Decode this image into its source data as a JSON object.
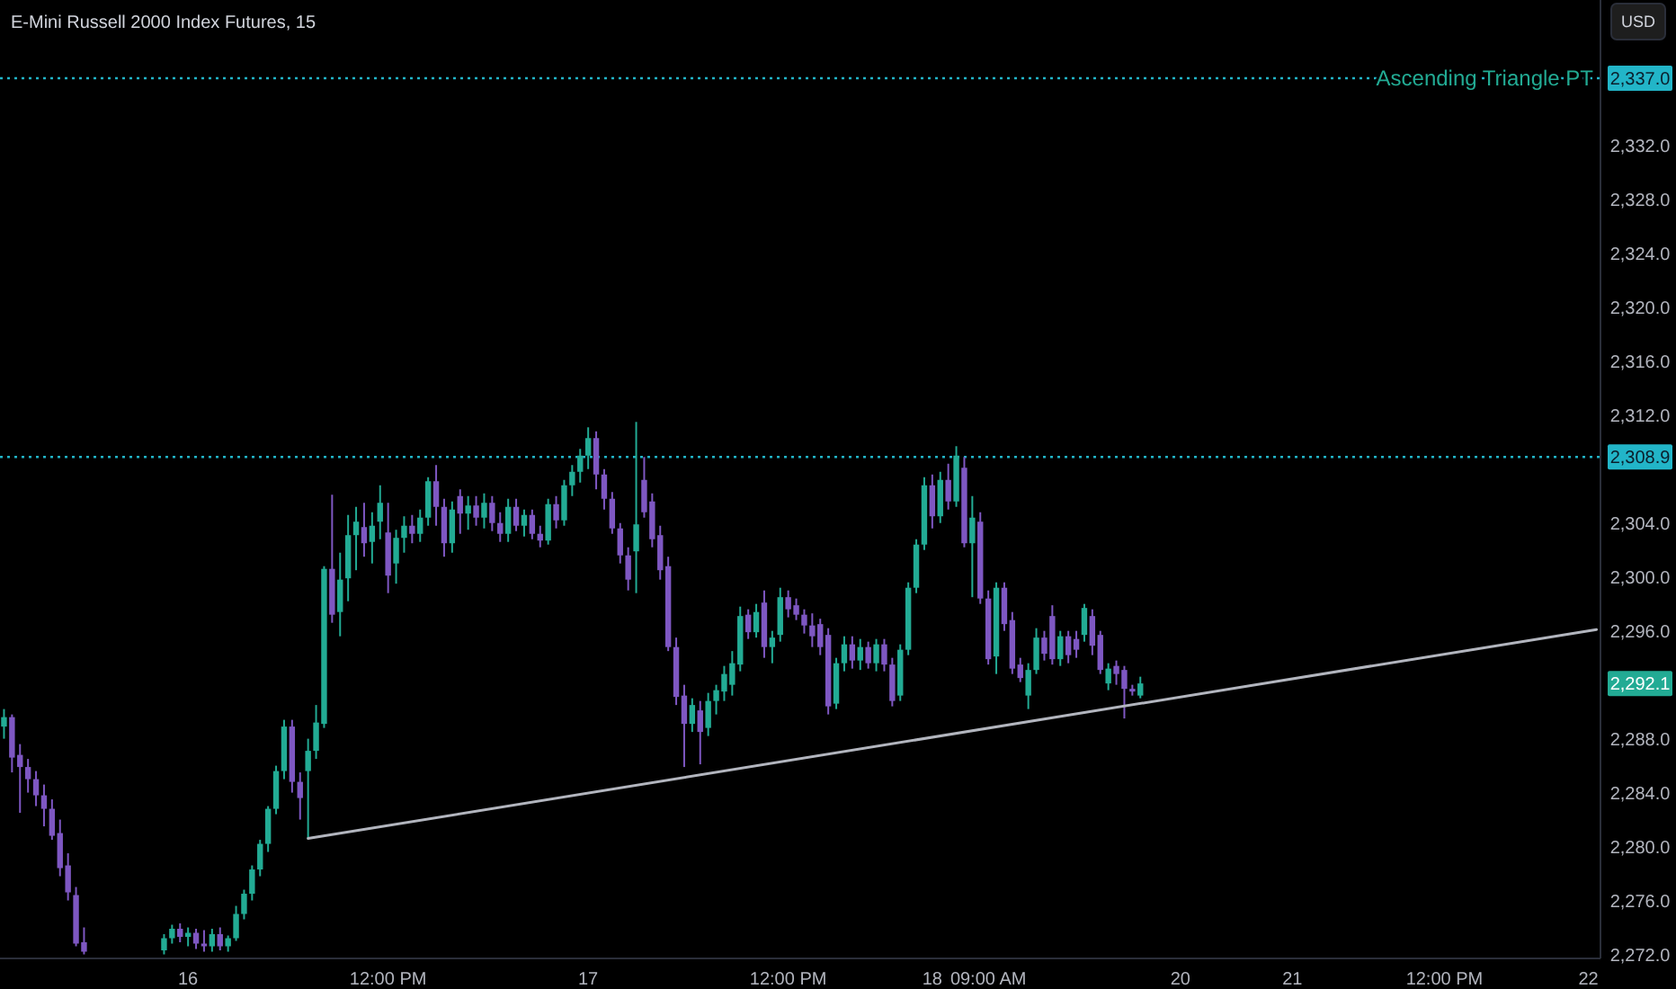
{
  "chart_data": {
    "type": "candlestick",
    "title": "E-Mini Russell 2000 Index Futures, 15",
    "categories": [
      null,
      null,
      null,
      null,
      null,
      null,
      null,
      null,
      null,
      null,
      null,
      null,
      null,
      null,
      null,
      null,
      null,
      null,
      null,
      null,
      null,
      null,
      null,
      "16",
      null,
      null,
      null,
      null,
      null,
      null,
      null,
      null,
      null,
      null,
      null,
      null,
      null,
      null,
      null,
      null,
      null,
      null,
      null,
      null,
      null,
      null,
      null,
      null,
      "12:00 PM",
      null,
      null,
      null,
      null,
      null,
      null,
      null,
      null,
      null,
      null,
      null,
      null,
      null,
      null,
      null,
      null,
      null,
      null,
      null,
      null,
      null,
      null,
      null,
      null,
      "17",
      null,
      null,
      null,
      null,
      null,
      null,
      null,
      null,
      null,
      null,
      null,
      null,
      null,
      null,
      null,
      null,
      null,
      null,
      null,
      null,
      null,
      null,
      null,
      null,
      "12:00 PM",
      null,
      null,
      null,
      null,
      null,
      null,
      null,
      null,
      null,
      null,
      null,
      null,
      null,
      null,
      null,
      null,
      null,
      "18",
      null,
      null,
      null,
      null,
      null,
      null,
      "09:00 AM",
      null,
      null,
      null,
      null,
      null,
      null,
      null,
      null,
      null,
      null,
      null,
      null,
      null,
      null,
      null,
      null,
      null,
      null,
      null,
      null,
      null,
      null,
      null,
      "20",
      null,
      null,
      null,
      null,
      null,
      null,
      null,
      null,
      null,
      null,
      null,
      null,
      null,
      "21",
      null,
      null,
      null,
      null,
      null,
      null,
      null,
      null,
      null,
      null,
      null,
      null,
      null,
      null,
      null,
      null,
      null,
      null,
      "12:00 PM",
      null,
      null,
      null,
      null,
      null,
      null,
      null,
      null,
      null,
      null,
      null,
      null,
      null,
      null,
      null,
      null,
      null,
      "22",
      null
    ],
    "ylim": [
      2271.7,
      2342.8
    ],
    "yticks": [
      {
        "value": 2272,
        "label": "2,272.0"
      },
      {
        "value": 2276,
        "label": "2,276.0"
      },
      {
        "value": 2280,
        "label": "2,280.0"
      },
      {
        "value": 2284,
        "label": "2,284.0"
      },
      {
        "value": 2288,
        "label": "2,288.0"
      },
      {
        "value": 2296,
        "label": "2,296.0"
      },
      {
        "value": 2300,
        "label": "2,300.0"
      },
      {
        "value": 2304,
        "label": "2,304.0"
      },
      {
        "value": 2312,
        "label": "2,312.0"
      },
      {
        "value": 2316,
        "label": "2,316.0"
      },
      {
        "value": 2320,
        "label": "2,320.0"
      },
      {
        "value": 2324,
        "label": "2,324.0"
      },
      {
        "value": 2328,
        "label": "2,328.0"
      },
      {
        "value": 2332,
        "label": "2,332.0"
      }
    ],
    "colors": [
      "#22ab94",
      "#7e57c2",
      "#7e57c2",
      "#7e57c2",
      "#7e57c2",
      "#7e57c2",
      "#7e57c2",
      "#7e57c2",
      "#7e57c2",
      "#7e57c2",
      "#7e57c2",
      null,
      null,
      null,
      null,
      null,
      null,
      null,
      null,
      null,
      "#22ab94",
      "#22ab94",
      "#7e57c2",
      "#22ab94",
      "#7e57c2",
      "#7e57c2",
      "#22ab94",
      "#7e57c2",
      "#22ab94",
      "#22ab94",
      "#22ab94",
      "#22ab94",
      "#22ab94",
      "#22ab94",
      "#22ab94",
      "#22ab94",
      "#7e57c2",
      "#7e57c2",
      "#22ab94",
      "#22ab94",
      "#22ab94",
      "#7e57c2",
      "#22ab94",
      "#22ab94",
      "#22ab94",
      "#7e57c2",
      "#22ab94",
      "#22ab94",
      "#7e57c2",
      "#22ab94",
      "#22ab94",
      "#7e57c2",
      "#22ab94",
      "#22ab94",
      "#7e57c2",
      "#7e57c2",
      "#22ab94",
      "#7e57c2",
      "#22ab94",
      "#7e57c2",
      "#22ab94",
      "#7e57c2",
      "#7e57c2",
      "#22ab94",
      "#7e57c2",
      "#22ab94",
      "#7e57c2",
      "#7e57c2",
      "#22ab94",
      "#7e57c2",
      "#22ab94",
      "#22ab94",
      "#22ab94",
      "#22ab94",
      "#7e57c2",
      "#7e57c2",
      "#7e57c2",
      "#7e57c2",
      "#7e57c2",
      "#22ab94",
      "#7e57c2",
      "#7e57c2",
      "#7e57c2",
      "#7e57c2",
      "#7e57c2",
      "#7e57c2",
      "#22ab94",
      "#7e57c2",
      "#22ab94",
      "#22ab94",
      "#22ab94",
      "#22ab94",
      "#22ab94",
      "#7e57c2",
      "#22ab94",
      "#7e57c2",
      "#22ab94",
      "#22ab94",
      "#7e57c2",
      "#7e57c2",
      "#7e57c2",
      "#7e57c2",
      "#7e57c2",
      "#7e57c2",
      "#22ab94",
      "#22ab94",
      "#7e57c2",
      "#22ab94",
      "#7e57c2",
      "#22ab94",
      "#7e57c2",
      "#7e57c2",
      "#22ab94",
      "#22ab94",
      "#22ab94",
      "#22ab94",
      "#7e57c2",
      "#22ab94",
      "#7e57c2",
      "#22ab94",
      "#7e57c2",
      "#22ab94",
      "#7e57c2",
      "#7e57c2",
      "#22ab94",
      "#7e57c2",
      "#7e57c2",
      "#7e57c2",
      "#22ab94",
      "#22ab94",
      "#7e57c2",
      "#7e57c2",
      "#22ab94",
      "#7e57c2",
      "#7e57c2",
      "#22ab94",
      "#7e57c2",
      "#7e57c2",
      "#22ab94",
      "#7e57c2",
      "#7e57c2",
      "#7e57c2",
      "#22ab94",
      null,
      null,
      null,
      null,
      null,
      null,
      null,
      null,
      null,
      null,
      null,
      null,
      null,
      null,
      null,
      null,
      null,
      null,
      null,
      null,
      null,
      null,
      null,
      null,
      null,
      null,
      null,
      null,
      null,
      null,
      null,
      null,
      null,
      null,
      null,
      null,
      null,
      null,
      null,
      null,
      null,
      null,
      null,
      null,
      null,
      null,
      null,
      null,
      null,
      null,
      null,
      null,
      null,
      null,
      null,
      null,
      null
    ],
    "ohlc": [
      [
        2288.9,
        2290.2,
        2288.0,
        2289.6
      ],
      [
        2289.6,
        2289.8,
        2285.5,
        2286.6
      ],
      [
        2286.8,
        2287.6,
        2282.5,
        2285.9
      ],
      [
        2285.9,
        2286.5,
        2284.0,
        2285.0
      ],
      [
        2285.0,
        2285.6,
        2283.0,
        2283.8
      ],
      [
        2283.8,
        2284.6,
        2281.5,
        2282.8
      ],
      [
        2282.8,
        2283.5,
        2280.5,
        2280.8
      ],
      [
        2281.0,
        2282.0,
        2277.8,
        2278.4
      ],
      [
        2278.6,
        2279.5,
        2276.0,
        2276.6
      ],
      [
        2276.4,
        2277.0,
        2272.6,
        2272.8
      ],
      [
        2272.9,
        2274.0,
        2272.0,
        2272.2
      ],
      null,
      null,
      null,
      null,
      null,
      null,
      null,
      null,
      null,
      [
        2272.3,
        2273.5,
        2272.0,
        2273.2
      ],
      [
        2273.2,
        2274.2,
        2272.8,
        2273.9
      ],
      [
        2273.9,
        2274.3,
        2272.9,
        2273.3
      ],
      [
        2273.3,
        2274.0,
        2272.6,
        2273.6
      ],
      [
        2273.6,
        2273.9,
        2272.4,
        2272.8
      ],
      [
        2272.8,
        2273.8,
        2272.2,
        2272.6
      ],
      [
        2272.6,
        2273.9,
        2272.2,
        2273.5
      ],
      [
        2273.5,
        2274.0,
        2272.3,
        2272.6
      ],
      [
        2272.6,
        2273.4,
        2272.2,
        2273.2
      ],
      [
        2273.2,
        2275.6,
        2273.0,
        2275.0
      ],
      [
        2275.0,
        2276.8,
        2274.6,
        2276.5
      ],
      [
        2276.5,
        2278.6,
        2276.0,
        2278.3
      ],
      [
        2278.3,
        2280.5,
        2277.8,
        2280.2
      ],
      [
        2280.2,
        2283.0,
        2279.6,
        2282.8
      ],
      [
        2282.8,
        2286.0,
        2282.4,
        2285.6
      ],
      [
        2285.6,
        2289.4,
        2285.0,
        2288.9
      ],
      [
        2288.9,
        2289.4,
        2284.0,
        2284.8
      ],
      [
        2284.8,
        2285.5,
        2282.0,
        2283.6
      ],
      [
        2285.6,
        2288.0,
        2280.6,
        2287.1
      ],
      [
        2287.1,
        2290.5,
        2286.5,
        2289.2
      ],
      [
        2289.1,
        2300.8,
        2288.8,
        2300.6
      ],
      [
        2300.6,
        2306.1,
        2296.6,
        2297.2
      ],
      [
        2297.4,
        2301.8,
        2295.6,
        2299.8
      ],
      [
        2299.9,
        2304.6,
        2298.2,
        2303.1
      ],
      [
        2303.1,
        2305.2,
        2300.5,
        2304.1
      ],
      [
        2303.7,
        2305.5,
        2301.5,
        2302.5
      ],
      [
        2302.6,
        2304.8,
        2301.0,
        2303.8
      ],
      [
        2304.1,
        2306.8,
        2302.8,
        2305.5
      ],
      [
        2303.3,
        2305.5,
        2298.8,
        2300.1
      ],
      [
        2301.0,
        2303.5,
        2299.5,
        2302.9
      ],
      [
        2302.9,
        2304.5,
        2301.8,
        2303.8
      ],
      [
        2303.8,
        2304.6,
        2302.5,
        2303.2
      ],
      [
        2303.2,
        2305.0,
        2302.6,
        2304.4
      ],
      [
        2304.4,
        2307.4,
        2303.8,
        2307.1
      ],
      [
        2307.1,
        2308.3,
        2303.8,
        2305.2
      ],
      [
        2305.2,
        2305.8,
        2301.5,
        2302.5
      ],
      [
        2302.5,
        2305.6,
        2301.8,
        2305.0
      ],
      [
        2306.0,
        2306.5,
        2303.2,
        2304.7
      ],
      [
        2304.7,
        2306.0,
        2303.5,
        2305.3
      ],
      [
        2305.3,
        2306.0,
        2303.8,
        2304.4
      ],
      [
        2304.4,
        2306.2,
        2303.6,
        2305.5
      ],
      [
        2305.5,
        2306.0,
        2303.4,
        2304.0
      ],
      [
        2304.0,
        2304.8,
        2302.6,
        2303.2
      ],
      [
        2303.2,
        2305.8,
        2302.6,
        2305.2
      ],
      [
        2305.2,
        2305.8,
        2303.4,
        2303.8
      ],
      [
        2303.8,
        2305.0,
        2303.0,
        2304.6
      ],
      [
        2304.6,
        2305.0,
        2302.8,
        2303.2
      ],
      [
        2303.2,
        2303.8,
        2302.2,
        2302.7
      ],
      [
        2302.7,
        2305.8,
        2302.4,
        2305.4
      ],
      [
        2305.4,
        2306.0,
        2303.6,
        2304.2
      ],
      [
        2304.2,
        2307.2,
        2303.8,
        2306.8
      ],
      [
        2306.8,
        2308.3,
        2306.0,
        2307.8
      ],
      [
        2307.8,
        2309.5,
        2307.0,
        2309.0
      ],
      [
        2309.0,
        2311.1,
        2308.0,
        2310.3
      ],
      [
        2310.3,
        2310.8,
        2306.5,
        2307.6
      ],
      [
        2307.6,
        2308.0,
        2305.0,
        2305.8
      ],
      [
        2305.8,
        2306.3,
        2303.2,
        2303.6
      ],
      [
        2303.6,
        2304.0,
        2301.0,
        2301.6
      ],
      [
        2301.6,
        2302.2,
        2299.0,
        2299.8
      ],
      [
        2301.9,
        2311.5,
        2298.8,
        2303.9
      ],
      [
        2307.2,
        2308.9,
        2304.4,
        2304.8
      ],
      [
        2305.6,
        2306.2,
        2302.2,
        2302.8
      ],
      [
        2303.1,
        2303.8,
        2299.8,
        2300.5
      ],
      [
        2300.8,
        2301.5,
        2294.5,
        2294.8
      ],
      [
        2294.8,
        2295.5,
        2290.5,
        2291.1
      ],
      [
        2291.2,
        2292.0,
        2285.9,
        2289.1
      ],
      [
        2289.1,
        2291.0,
        2288.5,
        2290.5
      ],
      [
        2290.1,
        2290.8,
        2286.1,
        2288.5
      ],
      [
        2288.8,
        2291.4,
        2288.2,
        2290.8
      ],
      [
        2290.8,
        2292.0,
        2289.8,
        2291.6
      ],
      [
        2291.5,
        2293.4,
        2290.8,
        2292.8
      ],
      [
        2292.0,
        2294.5,
        2291.2,
        2293.6
      ],
      [
        2293.5,
        2297.8,
        2293.0,
        2297.1
      ],
      [
        2297.2,
        2297.6,
        2295.4,
        2295.9
      ],
      [
        2295.9,
        2298.0,
        2295.5,
        2297.4
      ],
      [
        2298.1,
        2299.0,
        2294.0,
        2294.8
      ],
      [
        2294.8,
        2296.0,
        2293.6,
        2295.5
      ],
      [
        2295.7,
        2299.2,
        2295.2,
        2298.5
      ],
      [
        2298.5,
        2299.0,
        2297.0,
        2297.6
      ],
      [
        2297.9,
        2298.4,
        2296.8,
        2297.2
      ],
      [
        2297.2,
        2297.6,
        2295.8,
        2296.4
      ],
      [
        2296.4,
        2297.3,
        2294.8,
        2295.6
      ],
      [
        2296.5,
        2296.9,
        2294.2,
        2294.8
      ],
      [
        2295.7,
        2296.2,
        2289.8,
        2290.4
      ],
      [
        2290.6,
        2294.0,
        2290.2,
        2293.6
      ],
      [
        2293.6,
        2295.6,
        2293.0,
        2295.0
      ],
      [
        2295.0,
        2295.6,
        2293.2,
        2293.8
      ],
      [
        2293.8,
        2295.4,
        2293.1,
        2294.8
      ],
      [
        2294.8,
        2295.2,
        2293.2,
        2293.6
      ],
      [
        2293.6,
        2295.4,
        2293.0,
        2295.0
      ],
      [
        2295.0,
        2295.4,
        2293.0,
        2293.5
      ],
      [
        2293.5,
        2294.0,
        2290.4,
        2290.8
      ],
      [
        2291.2,
        2295.0,
        2290.8,
        2294.6
      ],
      [
        2294.6,
        2299.6,
        2294.2,
        2299.2
      ],
      [
        2299.2,
        2302.8,
        2298.8,
        2302.4
      ],
      [
        2302.4,
        2307.4,
        2302.0,
        2306.8
      ],
      [
        2306.8,
        2307.6,
        2303.6,
        2304.5
      ],
      [
        2304.5,
        2307.8,
        2304.0,
        2307.2
      ],
      [
        2307.2,
        2308.4,
        2305.0,
        2305.6
      ],
      [
        2305.6,
        2309.7,
        2305.2,
        2309.0
      ],
      [
        2308.1,
        2308.9,
        2302.2,
        2302.5
      ],
      [
        2302.5,
        2306.0,
        2298.5,
        2304.4
      ],
      [
        2304.1,
        2304.8,
        2298.0,
        2298.4
      ],
      [
        2298.4,
        2299.0,
        2293.5,
        2293.9
      ],
      [
        2294.1,
        2299.6,
        2292.8,
        2299.2
      ],
      [
        2299.2,
        2299.6,
        2296.0,
        2296.5
      ],
      [
        2296.8,
        2297.4,
        2292.8,
        2293.2
      ],
      [
        2293.5,
        2294.0,
        2292.2,
        2292.5
      ],
      [
        2291.2,
        2293.6,
        2290.2,
        2293.1
      ],
      [
        2293.1,
        2296.2,
        2292.8,
        2295.5
      ],
      [
        2295.5,
        2296.0,
        2293.8,
        2294.3
      ],
      [
        2297.1,
        2297.9,
        2293.5,
        2293.9
      ],
      [
        2293.9,
        2296.0,
        2293.4,
        2295.6
      ],
      [
        2295.6,
        2296.0,
        2293.6,
        2294.2
      ],
      [
        2295.4,
        2296.0,
        2294.0,
        2294.6
      ],
      [
        2295.7,
        2298.0,
        2295.2,
        2297.7
      ],
      [
        2297.1,
        2297.6,
        2294.2,
        2294.9
      ],
      [
        2295.7,
        2296.0,
        2292.8,
        2293.1
      ],
      [
        2292.1,
        2293.6,
        2291.6,
        2293.2
      ],
      [
        2293.4,
        2293.8,
        2292.0,
        2292.8
      ],
      [
        2293.1,
        2293.4,
        2289.5,
        2291.7
      ],
      [
        2291.7,
        2292.0,
        2291.2,
        2291.5
      ],
      [
        2291.2,
        2292.6,
        2291.0,
        2292.1
      ],
      null,
      null,
      null,
      null,
      null,
      null,
      null,
      null,
      null,
      null,
      null,
      null,
      null,
      null,
      null,
      null,
      null,
      null,
      null,
      null,
      null,
      null,
      null,
      null,
      null,
      null,
      null,
      null,
      null,
      null,
      null,
      null,
      null,
      null,
      null,
      null,
      null,
      null,
      null,
      null,
      null,
      null,
      null,
      null,
      null,
      null,
      null,
      null,
      null,
      null,
      null,
      null,
      null,
      null,
      null,
      null,
      null
    ],
    "series": [
      {
        "type": "line",
        "color": "#b2b5be",
        "values": [
          null,
          null,
          null,
          null,
          null,
          null,
          null,
          null,
          null,
          null,
          null,
          null,
          null,
          null,
          null,
          null,
          null,
          null,
          null,
          null,
          null,
          null,
          null,
          null,
          null,
          null,
          null,
          null,
          null,
          null,
          null,
          null,
          null,
          null,
          null,
          null,
          null,
          null,
          2280.6,
          null,
          null,
          null,
          null,
          null,
          null,
          null,
          null,
          null,
          null,
          null,
          null,
          null,
          null,
          null,
          null,
          null,
          null,
          null,
          null,
          null,
          null,
          null,
          null,
          null,
          null,
          null,
          null,
          null,
          null,
          null,
          null,
          null,
          null,
          null,
          null,
          null,
          null,
          null,
          null,
          null,
          null,
          null,
          null,
          null,
          null,
          null,
          null,
          null,
          null,
          null,
          null,
          null,
          null,
          null,
          null,
          null,
          null,
          null,
          null,
          null,
          null,
          null,
          null,
          null,
          null,
          null,
          null,
          null,
          null,
          null,
          null,
          null,
          null,
          null,
          null,
          null,
          null,
          null,
          null,
          null,
          null,
          null,
          null,
          null,
          null,
          null,
          null,
          null,
          null,
          null,
          null,
          null,
          null,
          null,
          null,
          null,
          null,
          null,
          null,
          null,
          null,
          null,
          null,
          null,
          null,
          null,
          null,
          null,
          null,
          null,
          null,
          null,
          null,
          null,
          null,
          null,
          null,
          null,
          null,
          null,
          null,
          null,
          null,
          null,
          null,
          null,
          null,
          null,
          null,
          null,
          null,
          null,
          null,
          null,
          null,
          null,
          null,
          null,
          null,
          null,
          null,
          null,
          null,
          null,
          null,
          null,
          null,
          null,
          null,
          null,
          null,
          null,
          null,
          null,
          null,
          null,
          null,
          null,
          null,
          2296.1
        ]
      }
    ],
    "ref_lines": [
      {
        "axis": "y",
        "value": 2337.0,
        "label": "Ascending Triangle PT",
        "color": "#22b5c8",
        "line_style": "dotted"
      },
      {
        "axis": "y",
        "value": 2308.9,
        "label": null,
        "color": "#22b5c8",
        "line_style": "dotted"
      }
    ],
    "annotations": [
      "USD",
      "2,337.0",
      "2,308.9",
      "2,292.1"
    ]
  }
}
